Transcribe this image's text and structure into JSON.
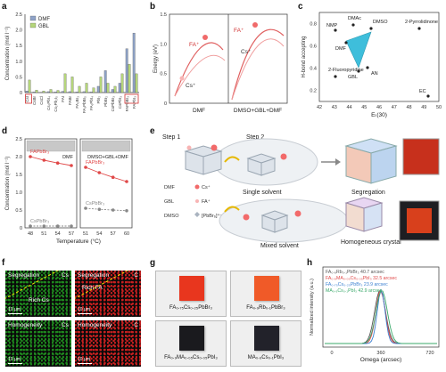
{
  "panels": {
    "a": {
      "label": "a",
      "ylabel": "Concentration (mol l⁻¹)",
      "legend": [
        "DMF",
        "GBL"
      ],
      "colors": {
        "dmf": "#8fa3c8",
        "gbl": "#b5d67a",
        "highlight": "#d03030"
      },
      "yticks": [
        "0",
        "0.5",
        "1.0",
        "1.5",
        "2.0",
        "2.5"
      ]
    },
    "b": {
      "label": "b",
      "ylabel": "Energy (eV)",
      "xlabels": [
        "DMF",
        "DMSO+GBL+DMF"
      ],
      "species": {
        "fa": "FA⁺",
        "cs": "Cs⁺"
      },
      "yticks": [
        "0",
        "0.5",
        "1.0",
        "1.5"
      ],
      "colors": {
        "curve": "#e06060",
        "curve_light": "#f0a0a0"
      }
    },
    "c": {
      "label": "c",
      "ylabel": "H-bond accepting",
      "xlabel": "Eₜ(30)",
      "xticks": [
        "42",
        "43",
        "44",
        "45",
        "46",
        "47",
        "48",
        "49",
        "50"
      ],
      "yticks": [
        "0.2",
        "0.4",
        "0.6",
        "0.8"
      ],
      "solvents": [
        "NMP",
        "DMAc",
        "DMSO",
        "2-Pyrrolidinone",
        "DMF",
        "GBL",
        "AN",
        "2-Fluoropyridine",
        "EC"
      ],
      "colors": {
        "triangle": "#2ab8d8"
      }
    },
    "d": {
      "label": "d",
      "ylabel": "Concentration (mol l⁻¹)",
      "xlabel": "Temperature (°C)",
      "series_left": [
        "FAPbBr₃",
        "CsPbBr₃"
      ],
      "series_right": [
        "FAPbBr₃",
        "CsPbBr₃"
      ],
      "solvent_left": "DMF",
      "solvent_right": "DMSO+GBL+DMF",
      "yticks": [
        "0",
        "0.5",
        "1.0",
        "1.5",
        "2.0",
        "2.5"
      ],
      "xticks_left": [
        "48",
        "51",
        "54",
        "57"
      ],
      "xticks_right": [
        "51",
        "54",
        "57",
        "60"
      ],
      "colors": {
        "fa": "#e04848",
        "cs": "#888888"
      }
    },
    "e": {
      "label": "e",
      "step1": "Step 1",
      "step2": "Step 2",
      "single": "Single solvent",
      "mixed": "Mixed solvent",
      "segregation": "Segregation",
      "homogeneous": "Homogeneous crystal",
      "legend": [
        "DMF",
        "GBL",
        "DMSO",
        "Cs⁺",
        "FA⁺",
        "[PbBr₆]⁴⁻"
      ]
    },
    "f": {
      "label": "f",
      "tiles": [
        {
          "title": "Segregation",
          "element": "Cs",
          "region": "Rich Cs",
          "scale": "10 μm",
          "color": "#1e8a1e"
        },
        {
          "title": "Segregation",
          "element": "C",
          "region": "Rich FA",
          "scale": "10 μm",
          "color": "#c82020"
        },
        {
          "title": "Homogeneity",
          "element": "Cs",
          "region": "",
          "scale": "10 μm",
          "color": "#1e8a1e"
        },
        {
          "title": "Homogeneity",
          "element": "C",
          "region": "",
          "scale": "10 μm",
          "color": "#c82020"
        }
      ]
    },
    "g": {
      "label": "g",
      "crystals": [
        {
          "caption": "FA₀.₇₅Cs₀.₂₅PbBr₃",
          "color": "#e8361e"
        },
        {
          "caption": "FA₀.₉Rb₀.₁PbBr₃",
          "color": "#f05a28"
        },
        {
          "caption": "FA₀.₉MA₀.₀₅Cs₀.₀₅PbI₃",
          "color": "#1a1a1e"
        },
        {
          "caption": "MA₀.₉Cs₀.₁PbI₃",
          "color": "#22222a"
        }
      ]
    },
    "h": {
      "label": "h",
      "ylabel": "Normalized intensity (a.u.)",
      "xlabel": "Omega (arcsec)",
      "xticks": [
        "0",
        "360",
        "720"
      ],
      "series": [
        {
          "name": "FA₀.₉Rb₀.₁PbBr₃  40.7 arcsec",
          "color": "#555555",
          "fwhm": 40.7
        },
        {
          "name": "FA₀.₉MA₀.₀₅Cs₀.₀₅PbI₃  32.5 arcsec",
          "color": "#e04848",
          "fwhm": 32.5
        },
        {
          "name": "FA₀.₇₅Cs₀.₂₅PbBr₃  23.9 arcsec",
          "color": "#3a7fd0",
          "fwhm": 23.9
        },
        {
          "name": "MA₀.₉Cs₀.₁PbI₃  42.9 arcsec",
          "color": "#3aa86a",
          "fwhm": 42.9
        }
      ]
    }
  },
  "chart_data": [
    {
      "type": "bar",
      "panel": "a",
      "ylabel": "Concentration (mol l⁻¹)",
      "ylim": [
        0,
        2.5
      ],
      "categories": [
        "CsI",
        "CsBr",
        "CsCl",
        "Cs₂PbI₄",
        "Cs₂Pb₂I₅",
        "FAI",
        "FABr",
        "FA₂Br₃",
        "FA₃PbBr₅",
        "FA₂PbI₄",
        "PbI₂",
        "PbBr₂",
        "CsPbBr₃",
        "CsPbI₃",
        "FAPbBr₃",
        "FAPbI₃"
      ],
      "series": [
        {
          "name": "DMF",
          "values": [
            0.05,
            0.02,
            0.01,
            0.03,
            0.02,
            0.04,
            0.03,
            0.02,
            0.03,
            0.02,
            0.2,
            0.7,
            0.1,
            0.3,
            1.4,
            1.9
          ]
        },
        {
          "name": "GBL",
          "values": [
            0.4,
            0.08,
            0.05,
            0.1,
            0.07,
            0.6,
            0.5,
            0.2,
            0.3,
            0.15,
            0.5,
            0.3,
            0.2,
            0.6,
            0.9,
            0.6
          ]
        }
      ]
    },
    {
      "type": "line",
      "panel": "d",
      "xlabel": "Temperature (°C)",
      "ylabel": "Concentration (mol l⁻¹)",
      "ylim": [
        0,
        2.5
      ],
      "series": [
        {
          "name": "FAPbBr₃ (DMF)",
          "x": [
            48,
            51,
            54,
            57
          ],
          "values": [
            2.0,
            1.9,
            1.82,
            1.75
          ]
        },
        {
          "name": "CsPbBr₃ (DMF)",
          "x": [
            48,
            51,
            54,
            57
          ],
          "values": [
            0.05,
            0.05,
            0.05,
            0.05
          ]
        },
        {
          "name": "FAPbBr₃ (DMSO+GBL+DMF)",
          "x": [
            51,
            54,
            57,
            60
          ],
          "values": [
            1.7,
            1.55,
            1.42,
            1.3
          ]
        },
        {
          "name": "CsPbBr₃ (DMSO+GBL+DMF)",
          "x": [
            51,
            54,
            57,
            60
          ],
          "values": [
            0.55,
            0.52,
            0.5,
            0.48
          ]
        }
      ]
    }
  ]
}
